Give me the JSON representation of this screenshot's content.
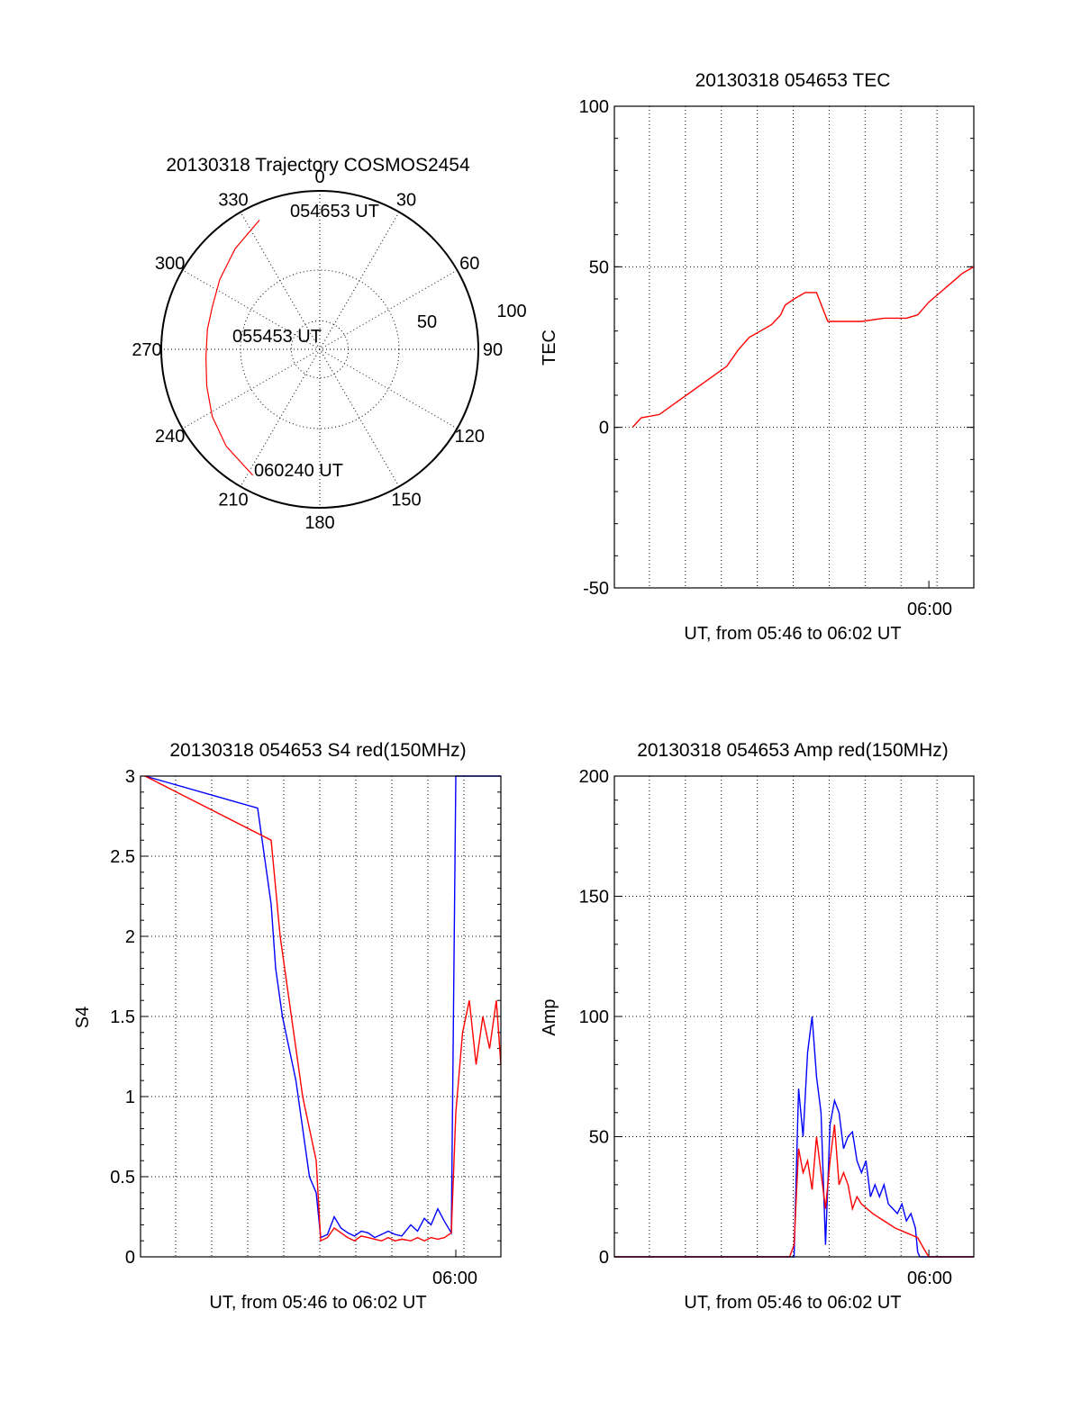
{
  "chart_data": [
    {
      "type": "polar-trajectory",
      "title": "20130318 Trajectory COSMOS2454",
      "azimuth_ticks": [
        "0",
        "30",
        "60",
        "90",
        "120",
        "150",
        "180",
        "210",
        "240",
        "270",
        "300",
        "330"
      ],
      "elevation_rings": [
        0,
        50
      ],
      "elevation_labels": [
        "50",
        "100"
      ],
      "points": [
        {
          "label": "054653 UT",
          "azimuth": 335,
          "elevation": 10
        },
        {
          "label": "055453 UT",
          "azimuth": 280,
          "elevation": 28
        },
        {
          "label": "060240 UT",
          "azimuth": 208,
          "elevation": 10
        }
      ],
      "track": [
        [
          335,
          10
        ],
        [
          320,
          17
        ],
        [
          305,
          23
        ],
        [
          292,
          27
        ],
        [
          280,
          28
        ],
        [
          266,
          28
        ],
        [
          252,
          25
        ],
        [
          238,
          20
        ],
        [
          224,
          15
        ],
        [
          208,
          10
        ]
      ],
      "track_color": "#ff0000"
    },
    {
      "type": "line",
      "title": "20130318 054653 TEC",
      "ylabel": "TEC",
      "xlabel": "UT, from 05:46 to 06:02 UT",
      "x_tick_label": "06:00",
      "x_tick_time": 14.0,
      "xlim": [
        0,
        16
      ],
      "ylim": [
        -50,
        100
      ],
      "yticks": [
        -50,
        0,
        50,
        100
      ],
      "series": [
        {
          "name": "TEC",
          "color": "#ff0000",
          "x": [
            0.8,
            1.2,
            2.0,
            3.0,
            4.0,
            5.0,
            5.5,
            6.0,
            6.5,
            7.0,
            7.4,
            7.6,
            8.0,
            8.5,
            8.8,
            9.0,
            9.5,
            10.0,
            11.0,
            12.0,
            13.0,
            13.5,
            14.0,
            14.5,
            15.0,
            15.5,
            16.0
          ],
          "y": [
            0,
            3,
            4,
            9,
            14,
            19,
            24,
            28,
            30,
            32,
            35,
            38,
            40,
            42,
            42,
            42,
            33,
            33,
            33,
            34,
            34,
            35,
            39,
            42,
            45,
            48,
            50
          ]
        }
      ]
    },
    {
      "type": "line",
      "title": "20130318 054653 S4 red(150MHz)",
      "ylabel": "S4",
      "xlabel": "UT, from 05:46 to 06:02 UT",
      "x_tick_label": "06:00",
      "x_tick_time": 14.0,
      "xlim": [
        0,
        16
      ],
      "ylim": [
        0,
        3
      ],
      "yticks": [
        0,
        0.5,
        1,
        1.5,
        2,
        2.5,
        3
      ],
      "ytick_labels": [
        "0",
        "0.5",
        "1",
        "1.5",
        "2",
        "2.5",
        "3"
      ],
      "series": [
        {
          "name": "blue",
          "color": "#0000ff",
          "x": [
            0.2,
            5.2,
            5.5,
            5.8,
            6.0,
            6.3,
            6.6,
            6.9,
            7.2,
            7.5,
            7.8,
            8.0,
            8.3,
            8.6,
            8.9,
            9.2,
            9.5,
            9.8,
            10.1,
            10.4,
            10.7,
            11.0,
            11.3,
            11.6,
            12.0,
            12.3,
            12.6,
            12.9,
            13.2,
            13.5,
            13.8,
            14.0,
            14.5,
            15.0,
            15.5,
            16.0
          ],
          "y": [
            3,
            2.8,
            2.5,
            2.2,
            1.8,
            1.5,
            1.3,
            1.1,
            0.8,
            0.5,
            0.4,
            0.12,
            0.14,
            0.25,
            0.18,
            0.15,
            0.13,
            0.16,
            0.15,
            0.12,
            0.14,
            0.16,
            0.14,
            0.13,
            0.2,
            0.16,
            0.24,
            0.2,
            0.3,
            0.22,
            0.15,
            3,
            3,
            3,
            3,
            3
          ]
        },
        {
          "name": "red",
          "color": "#ff0000",
          "x": [
            0.2,
            5.8,
            6.2,
            6.6,
            6.9,
            7.2,
            7.5,
            7.8,
            8.0,
            8.3,
            8.6,
            8.9,
            9.2,
            9.5,
            9.8,
            10.1,
            10.4,
            10.7,
            11.0,
            11.3,
            11.6,
            12.0,
            12.3,
            12.6,
            12.9,
            13.2,
            13.5,
            13.8,
            14.0,
            14.3,
            14.6,
            14.9,
            15.2,
            15.5,
            15.8,
            16.0
          ],
          "y": [
            3,
            2.6,
            2.0,
            1.6,
            1.3,
            1.0,
            0.8,
            0.6,
            0.1,
            0.12,
            0.18,
            0.15,
            0.12,
            0.1,
            0.13,
            0.12,
            0.11,
            0.1,
            0.12,
            0.1,
            0.11,
            0.1,
            0.12,
            0.1,
            0.12,
            0.11,
            0.12,
            0.15,
            0.9,
            1.4,
            1.6,
            1.2,
            1.5,
            1.3,
            1.6,
            1.2
          ]
        }
      ]
    },
    {
      "type": "line",
      "title": "20130318 054653 Amp red(150MHz)",
      "ylabel": "Amp",
      "xlabel": "UT, from 05:46 to 06:02 UT",
      "x_tick_label": "06:00",
      "x_tick_time": 14.0,
      "xlim": [
        0,
        16
      ],
      "ylim": [
        0,
        200
      ],
      "yticks": [
        0,
        50,
        100,
        150,
        200
      ],
      "series": [
        {
          "name": "blue",
          "color": "#0000ff",
          "x": [
            0,
            8.0,
            8.2,
            8.4,
            8.6,
            8.8,
            9.0,
            9.2,
            9.4,
            9.6,
            9.8,
            10.0,
            10.2,
            10.4,
            10.6,
            10.8,
            11.0,
            11.2,
            11.4,
            11.6,
            11.8,
            12.0,
            12.2,
            12.4,
            12.6,
            12.8,
            13.0,
            13.2,
            13.4,
            13.5,
            13.6,
            16.0
          ],
          "y": [
            0,
            0,
            70,
            50,
            85,
            100,
            75,
            60,
            5,
            55,
            65,
            60,
            45,
            50,
            52,
            40,
            35,
            40,
            25,
            30,
            25,
            30,
            22,
            20,
            18,
            22,
            15,
            18,
            12,
            2,
            0,
            0
          ]
        },
        {
          "name": "red",
          "color": "#ff0000",
          "x": [
            0,
            7.8,
            8.0,
            8.2,
            8.4,
            8.6,
            8.8,
            9.0,
            9.2,
            9.4,
            9.6,
            9.8,
            10.0,
            10.2,
            10.4,
            10.6,
            10.8,
            11.0,
            11.5,
            12.0,
            12.5,
            13.0,
            13.5,
            13.8,
            14.0,
            16.0
          ],
          "y": [
            0,
            0,
            5,
            45,
            35,
            40,
            28,
            50,
            35,
            20,
            40,
            55,
            30,
            35,
            30,
            20,
            25,
            22,
            18,
            15,
            12,
            10,
            8,
            3,
            0,
            0
          ]
        }
      ]
    }
  ]
}
